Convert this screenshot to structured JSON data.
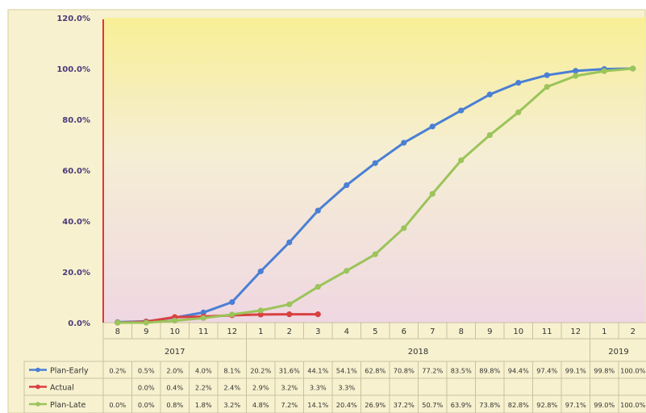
{
  "chart_data": {
    "type": "line",
    "x_labels": [
      "8",
      "9",
      "10",
      "11",
      "12",
      "1",
      "2",
      "3",
      "4",
      "5",
      "6",
      "7",
      "8",
      "9",
      "10",
      "11",
      "12",
      "1",
      "2"
    ],
    "years": [
      {
        "label": "2017",
        "start": 0,
        "end": 4
      },
      {
        "label": "2018",
        "start": 5,
        "end": 16
      },
      {
        "label": "2019",
        "start": 17,
        "end": 18
      }
    ],
    "y_ticks": [
      "0.0%",
      "20.0%",
      "40.0%",
      "60.0%",
      "80.0%",
      "100.0%",
      "120.0%"
    ],
    "ylim": [
      0,
      120
    ],
    "grid": false,
    "series": [
      {
        "name": "Plan-Early",
        "color": "#4a7fd4",
        "values": [
          0.2,
          0.5,
          2.0,
          4.0,
          8.1,
          20.2,
          31.6,
          44.1,
          54.1,
          62.8,
          70.8,
          77.2,
          83.5,
          89.8,
          94.4,
          97.4,
          99.1,
          99.8,
          100.0
        ],
        "labels": [
          "0.2%",
          "0.5%",
          "2.0%",
          "4.0%",
          "8.1%",
          "20.2%",
          "31.6%",
          "44.1%",
          "54.1%",
          "62.8%",
          "70.8%",
          "77.2%",
          "83.5%",
          "89.8%",
          "94.4%",
          "97.4%",
          "99.1%",
          "99.8%",
          "100.0%"
        ]
      },
      {
        "name": "Actual",
        "color": "#d94040",
        "values": [
          null,
          0.0,
          0.4,
          2.2,
          2.4,
          2.9,
          3.2,
          3.3,
          3.3
        ],
        "labels": [
          "",
          "0.0%",
          "0.4%",
          "2.2%",
          "2.4%",
          "2.9%",
          "3.2%",
          "3.3%",
          "3.3%"
        ],
        "plot_values": [
          0.0,
          0.4,
          2.2,
          2.4,
          2.9,
          3.2,
          3.3,
          3.3
        ],
        "plot_start": 0
      },
      {
        "name": "Plan-Late",
        "color": "#9bc45a",
        "values": [
          0.0,
          0.0,
          0.8,
          1.8,
          3.2,
          4.8,
          7.2,
          14.1,
          20.4,
          26.9,
          37.2,
          50.7,
          63.9,
          73.8,
          82.8,
          92.8,
          97.1,
          99.0,
          100.0
        ],
        "labels": [
          "0.0%",
          "0.0%",
          "0.8%",
          "1.8%",
          "3.2%",
          "4.8%",
          "7.2%",
          "14.1%",
          "20.4%",
          "26.9%",
          "37.2%",
          "50.7%",
          "63.9%",
          "73.8%",
          "82.8%",
          "92.8%",
          "97.1%",
          "99.0%",
          "100.0%"
        ]
      }
    ]
  }
}
